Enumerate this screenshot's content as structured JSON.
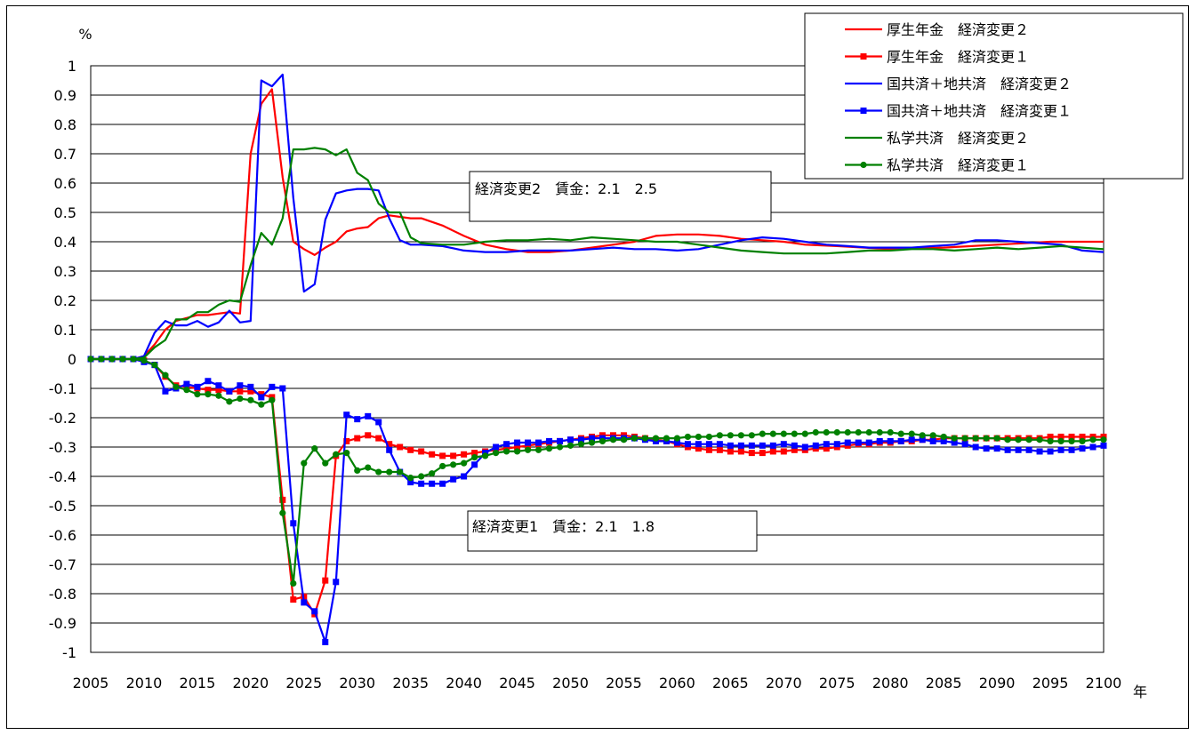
{
  "chart_data": {
    "type": "line",
    "title": "",
    "ylabel": "%",
    "xlabel": "年",
    "xlim": [
      2005,
      2100
    ],
    "ylim": [
      -1,
      1
    ],
    "y_ticks": [
      "1",
      "0.9",
      "0.8",
      "0.7",
      "0.6",
      "0.5",
      "0.4",
      "0.3",
      "0.2",
      "0.1",
      "0",
      "-0.1",
      "-0.2",
      "-0.3",
      "-0.4",
      "-0.5",
      "-0.6",
      "-0.7",
      "-0.8",
      "-0.9",
      "-1"
    ],
    "x_ticks": [
      "2005",
      "2010",
      "2015",
      "2020",
      "2025",
      "2030",
      "2035",
      "2040",
      "2045",
      "2050",
      "2055",
      "2060",
      "2065",
      "2070",
      "2075",
      "2080",
      "2085",
      "2090",
      "2095",
      "2100"
    ],
    "grid": "horizontal",
    "legend_position": "top-right",
    "annotations": [
      "経済変更2　賃金：2.1　2.5",
      "経済変更1　賃金：2.1　1.8"
    ],
    "series": [
      {
        "name": "厚生年金　経済変更２",
        "color": "#ff0000",
        "marker": "none",
        "x": [
          2005,
          2006,
          2007,
          2008,
          2009,
          2010,
          2011,
          2012,
          2013,
          2014,
          2015,
          2016,
          2017,
          2018,
          2019,
          2020,
          2021,
          2022,
          2023,
          2024,
          2025,
          2026,
          2027,
          2028,
          2029,
          2030,
          2031,
          2032,
          2033,
          2034,
          2035,
          2036,
          2038,
          2040,
          2042,
          2044,
          2046,
          2048,
          2050,
          2052,
          2054,
          2056,
          2058,
          2060,
          2062,
          2064,
          2066,
          2068,
          2070,
          2072,
          2075,
          2080,
          2085,
          2090,
          2095,
          2100
        ],
        "y": [
          0,
          0,
          0,
          0,
          0,
          0.01,
          0.05,
          0.1,
          0.13,
          0.14,
          0.15,
          0.15,
          0.155,
          0.16,
          0.155,
          0.7,
          0.87,
          0.92,
          0.62,
          0.4,
          0.375,
          0.355,
          0.38,
          0.4,
          0.435,
          0.445,
          0.45,
          0.48,
          0.49,
          0.485,
          0.48,
          0.48,
          0.455,
          0.42,
          0.39,
          0.375,
          0.365,
          0.365,
          0.37,
          0.38,
          0.39,
          0.4,
          0.42,
          0.425,
          0.425,
          0.42,
          0.41,
          0.405,
          0.4,
          0.39,
          0.385,
          0.375,
          0.38,
          0.39,
          0.4,
          0.4
        ]
      },
      {
        "name": "厚生年金　経済変更１",
        "color": "#ff0000",
        "marker": "square",
        "x": [
          2005,
          2006,
          2007,
          2008,
          2009,
          2010,
          2011,
          2012,
          2013,
          2014,
          2015,
          2016,
          2017,
          2018,
          2019,
          2020,
          2021,
          2022,
          2023,
          2024,
          2025,
          2026,
          2027,
          2028,
          2029,
          2030,
          2031,
          2032,
          2033,
          2034,
          2035,
          2036,
          2037,
          2038,
          2039,
          2040,
          2041,
          2042,
          2043,
          2044,
          2045,
          2046,
          2047,
          2048,
          2049,
          2050,
          2051,
          2052,
          2053,
          2054,
          2055,
          2056,
          2057,
          2058,
          2059,
          2060,
          2061,
          2062,
          2063,
          2064,
          2065,
          2066,
          2067,
          2068,
          2069,
          2070,
          2071,
          2072,
          2073,
          2074,
          2075,
          2076,
          2077,
          2078,
          2079,
          2080,
          2081,
          2082,
          2083,
          2084,
          2085,
          2086,
          2087,
          2088,
          2089,
          2090,
          2091,
          2092,
          2093,
          2094,
          2095,
          2096,
          2097,
          2098,
          2099,
          2100
        ],
        "y": [
          0,
          0,
          0,
          0,
          0,
          -0.005,
          -0.02,
          -0.06,
          -0.09,
          -0.095,
          -0.1,
          -0.105,
          -0.105,
          -0.11,
          -0.11,
          -0.11,
          -0.12,
          -0.13,
          -0.48,
          -0.82,
          -0.81,
          -0.87,
          -0.755,
          -0.33,
          -0.28,
          -0.27,
          -0.26,
          -0.27,
          -0.29,
          -0.3,
          -0.31,
          -0.315,
          -0.325,
          -0.33,
          -0.33,
          -0.325,
          -0.32,
          -0.315,
          -0.31,
          -0.305,
          -0.3,
          -0.295,
          -0.29,
          -0.285,
          -0.28,
          -0.275,
          -0.27,
          -0.265,
          -0.26,
          -0.26,
          -0.26,
          -0.265,
          -0.27,
          -0.275,
          -0.28,
          -0.29,
          -0.3,
          -0.305,
          -0.31,
          -0.31,
          -0.315,
          -0.315,
          -0.32,
          -0.32,
          -0.315,
          -0.315,
          -0.31,
          -0.31,
          -0.305,
          -0.305,
          -0.3,
          -0.295,
          -0.29,
          -0.29,
          -0.285,
          -0.285,
          -0.28,
          -0.28,
          -0.275,
          -0.275,
          -0.27,
          -0.27,
          -0.27,
          -0.27,
          -0.27,
          -0.27,
          -0.27,
          -0.27,
          -0.27,
          -0.27,
          -0.265,
          -0.265,
          -0.265,
          -0.265,
          -0.265,
          -0.265
        ]
      },
      {
        "name": "国共済＋地共済　経済変更２",
        "color": "#0000ff",
        "marker": "none",
        "x": [
          2005,
          2006,
          2007,
          2008,
          2009,
          2010,
          2011,
          2012,
          2013,
          2014,
          2015,
          2016,
          2017,
          2018,
          2019,
          2020,
          2021,
          2022,
          2023,
          2024,
          2025,
          2026,
          2027,
          2028,
          2029,
          2030,
          2031,
          2032,
          2033,
          2034,
          2035,
          2036,
          2038,
          2040,
          2042,
          2044,
          2046,
          2048,
          2050,
          2052,
          2054,
          2056,
          2058,
          2060,
          2062,
          2064,
          2066,
          2068,
          2070,
          2072,
          2074,
          2076,
          2078,
          2080,
          2082,
          2084,
          2086,
          2088,
          2090,
          2092,
          2094,
          2096,
          2098,
          2100
        ],
        "y": [
          0,
          0,
          0,
          0,
          0,
          0.01,
          0.09,
          0.13,
          0.115,
          0.115,
          0.13,
          0.11,
          0.125,
          0.165,
          0.125,
          0.13,
          0.95,
          0.93,
          0.97,
          0.55,
          0.23,
          0.255,
          0.475,
          0.565,
          0.575,
          0.58,
          0.58,
          0.575,
          0.48,
          0.405,
          0.39,
          0.39,
          0.385,
          0.37,
          0.365,
          0.365,
          0.37,
          0.37,
          0.37,
          0.375,
          0.38,
          0.375,
          0.375,
          0.37,
          0.375,
          0.39,
          0.405,
          0.415,
          0.41,
          0.4,
          0.39,
          0.385,
          0.38,
          0.38,
          0.38,
          0.385,
          0.39,
          0.405,
          0.405,
          0.4,
          0.395,
          0.39,
          0.37,
          0.365
        ]
      },
      {
        "name": "国共済＋地共済　経済変更１",
        "color": "#0000ff",
        "marker": "square",
        "x": [
          2005,
          2006,
          2007,
          2008,
          2009,
          2010,
          2011,
          2012,
          2013,
          2014,
          2015,
          2016,
          2017,
          2018,
          2019,
          2020,
          2021,
          2022,
          2023,
          2024,
          2025,
          2026,
          2027,
          2028,
          2029,
          2030,
          2031,
          2032,
          2033,
          2034,
          2035,
          2036,
          2037,
          2038,
          2039,
          2040,
          2041,
          2042,
          2043,
          2044,
          2045,
          2046,
          2047,
          2048,
          2049,
          2050,
          2051,
          2052,
          2053,
          2054,
          2055,
          2056,
          2057,
          2058,
          2059,
          2060,
          2061,
          2062,
          2063,
          2064,
          2065,
          2066,
          2067,
          2068,
          2069,
          2070,
          2071,
          2072,
          2073,
          2074,
          2075,
          2076,
          2077,
          2078,
          2079,
          2080,
          2081,
          2082,
          2083,
          2084,
          2085,
          2086,
          2087,
          2088,
          2089,
          2090,
          2091,
          2092,
          2093,
          2094,
          2095,
          2096,
          2097,
          2098,
          2099,
          2100
        ],
        "y": [
          0,
          0,
          0,
          0,
          0,
          -0.01,
          -0.02,
          -0.11,
          -0.1,
          -0.085,
          -0.095,
          -0.075,
          -0.09,
          -0.11,
          -0.09,
          -0.095,
          -0.13,
          -0.095,
          -0.1,
          -0.56,
          -0.83,
          -0.86,
          -0.965,
          -0.76,
          -0.19,
          -0.205,
          -0.195,
          -0.215,
          -0.31,
          -0.385,
          -0.42,
          -0.425,
          -0.425,
          -0.425,
          -0.41,
          -0.4,
          -0.36,
          -0.32,
          -0.3,
          -0.29,
          -0.285,
          -0.285,
          -0.285,
          -0.28,
          -0.28,
          -0.275,
          -0.275,
          -0.27,
          -0.27,
          -0.27,
          -0.27,
          -0.27,
          -0.275,
          -0.28,
          -0.28,
          -0.285,
          -0.29,
          -0.29,
          -0.29,
          -0.29,
          -0.295,
          -0.295,
          -0.295,
          -0.295,
          -0.295,
          -0.29,
          -0.295,
          -0.3,
          -0.295,
          -0.29,
          -0.29,
          -0.285,
          -0.285,
          -0.285,
          -0.28,
          -0.28,
          -0.28,
          -0.275,
          -0.275,
          -0.28,
          -0.28,
          -0.285,
          -0.29,
          -0.3,
          -0.305,
          -0.305,
          -0.31,
          -0.31,
          -0.31,
          -0.315,
          -0.315,
          -0.31,
          -0.31,
          -0.305,
          -0.3,
          -0.295
        ]
      },
      {
        "name": "私学共済　経済変更２",
        "color": "#008000",
        "marker": "none",
        "x": [
          2005,
          2006,
          2007,
          2008,
          2009,
          2010,
          2011,
          2012,
          2013,
          2014,
          2015,
          2016,
          2017,
          2018,
          2019,
          2020,
          2021,
          2022,
          2023,
          2024,
          2025,
          2026,
          2027,
          2028,
          2029,
          2030,
          2031,
          2032,
          2033,
          2034,
          2035,
          2036,
          2038,
          2040,
          2042,
          2044,
          2046,
          2048,
          2050,
          2052,
          2054,
          2056,
          2058,
          2060,
          2062,
          2064,
          2066,
          2068,
          2070,
          2072,
          2074,
          2076,
          2078,
          2080,
          2082,
          2084,
          2086,
          2088,
          2090,
          2092,
          2094,
          2096,
          2098,
          2100
        ],
        "y": [
          0,
          0,
          0,
          0,
          0,
          0.005,
          0.04,
          0.065,
          0.135,
          0.135,
          0.16,
          0.16,
          0.185,
          0.2,
          0.195,
          0.32,
          0.43,
          0.39,
          0.48,
          0.715,
          0.715,
          0.72,
          0.715,
          0.695,
          0.715,
          0.635,
          0.61,
          0.53,
          0.5,
          0.5,
          0.415,
          0.395,
          0.39,
          0.39,
          0.4,
          0.405,
          0.405,
          0.41,
          0.405,
          0.415,
          0.41,
          0.405,
          0.4,
          0.4,
          0.39,
          0.38,
          0.37,
          0.365,
          0.36,
          0.36,
          0.36,
          0.365,
          0.37,
          0.37,
          0.375,
          0.375,
          0.37,
          0.375,
          0.38,
          0.375,
          0.38,
          0.385,
          0.38,
          0.375
        ]
      },
      {
        "name": "私学共済　経済変更１",
        "color": "#008000",
        "marker": "circle",
        "x": [
          2005,
          2006,
          2007,
          2008,
          2009,
          2010,
          2011,
          2012,
          2013,
          2014,
          2015,
          2016,
          2017,
          2018,
          2019,
          2020,
          2021,
          2022,
          2023,
          2024,
          2025,
          2026,
          2027,
          2028,
          2029,
          2030,
          2031,
          2032,
          2033,
          2034,
          2035,
          2036,
          2037,
          2038,
          2039,
          2040,
          2041,
          2042,
          2043,
          2044,
          2045,
          2046,
          2047,
          2048,
          2049,
          2050,
          2051,
          2052,
          2053,
          2054,
          2055,
          2056,
          2057,
          2058,
          2059,
          2060,
          2061,
          2062,
          2063,
          2064,
          2065,
          2066,
          2067,
          2068,
          2069,
          2070,
          2071,
          2072,
          2073,
          2074,
          2075,
          2076,
          2077,
          2078,
          2079,
          2080,
          2081,
          2082,
          2083,
          2084,
          2085,
          2086,
          2087,
          2088,
          2089,
          2090,
          2091,
          2092,
          2093,
          2094,
          2095,
          2096,
          2097,
          2098,
          2099,
          2100
        ],
        "y": [
          0,
          0,
          0,
          0,
          0,
          -0.005,
          -0.02,
          -0.055,
          -0.095,
          -0.105,
          -0.12,
          -0.12,
          -0.125,
          -0.145,
          -0.135,
          -0.14,
          -0.155,
          -0.14,
          -0.525,
          -0.765,
          -0.355,
          -0.305,
          -0.355,
          -0.325,
          -0.32,
          -0.38,
          -0.37,
          -0.385,
          -0.385,
          -0.385,
          -0.405,
          -0.4,
          -0.39,
          -0.365,
          -0.36,
          -0.355,
          -0.335,
          -0.33,
          -0.32,
          -0.315,
          -0.315,
          -0.31,
          -0.31,
          -0.305,
          -0.3,
          -0.295,
          -0.29,
          -0.285,
          -0.28,
          -0.275,
          -0.275,
          -0.27,
          -0.27,
          -0.27,
          -0.27,
          -0.27,
          -0.265,
          -0.265,
          -0.265,
          -0.26,
          -0.26,
          -0.26,
          -0.26,
          -0.255,
          -0.255,
          -0.255,
          -0.255,
          -0.255,
          -0.25,
          -0.25,
          -0.25,
          -0.25,
          -0.25,
          -0.25,
          -0.25,
          -0.25,
          -0.255,
          -0.255,
          -0.26,
          -0.26,
          -0.265,
          -0.27,
          -0.27,
          -0.27,
          -0.27,
          -0.27,
          -0.275,
          -0.275,
          -0.275,
          -0.275,
          -0.28,
          -0.28,
          -0.28,
          -0.28,
          -0.275,
          -0.275
        ]
      }
    ]
  }
}
